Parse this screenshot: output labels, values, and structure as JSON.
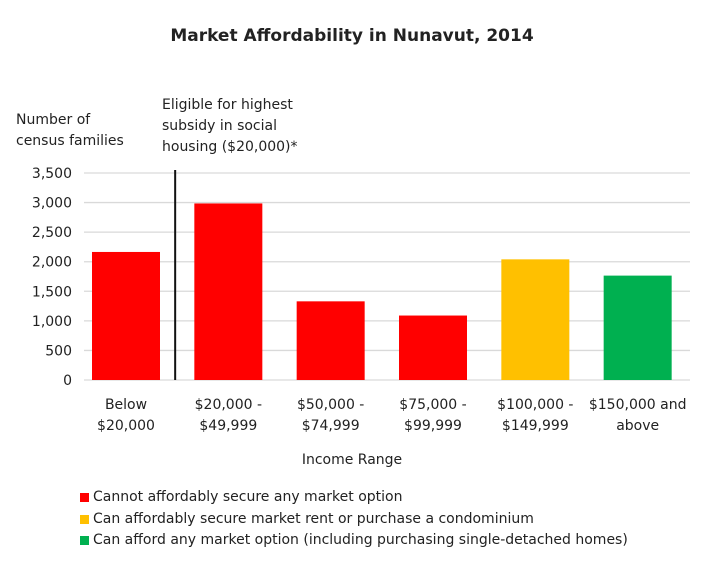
{
  "chart_data": {
    "type": "bar",
    "title": "Market Affordability in Nunavut, 2014",
    "xlabel": "Income Range",
    "ylabel": "Number of census families",
    "ylim": [
      0,
      3500
    ],
    "yticks": [
      0,
      500,
      1000,
      1500,
      2000,
      2500,
      3000,
      3500
    ],
    "ytick_labels": [
      "0",
      "500",
      "1,000",
      "1,500",
      "2,000",
      "2,500",
      "3,000",
      "3,500"
    ],
    "grid": true,
    "categories": [
      [
        "Below",
        "$20,000"
      ],
      [
        "$20,000 -",
        "$49,999"
      ],
      [
        "$50,000 -",
        "$74,999"
      ],
      [
        "$75,000 -",
        "$99,999"
      ],
      [
        "$100,000 -",
        "$149,999"
      ],
      [
        "$150,000 and",
        "above"
      ]
    ],
    "values": [
      2165,
      2985,
      1330,
      1090,
      2040,
      1765
    ],
    "bar_groups": [
      0,
      0,
      0,
      0,
      1,
      2
    ],
    "annotation": {
      "text": [
        "Eligible for highest",
        "subsidy in social",
        "housing ($20,000)*"
      ],
      "at": "between category 1 and 2 (income $20,000)"
    },
    "legend": {
      "position": "bottom",
      "entries": [
        {
          "label": "Cannot affordably secure any market option",
          "color": "#ff0000"
        },
        {
          "label": "Can affordably secure market rent or purchase a condominium",
          "color": "#ffc000"
        },
        {
          "label": "Can afford any market option (including purchasing single-detached homes)",
          "color": "#00b050"
        }
      ]
    }
  }
}
